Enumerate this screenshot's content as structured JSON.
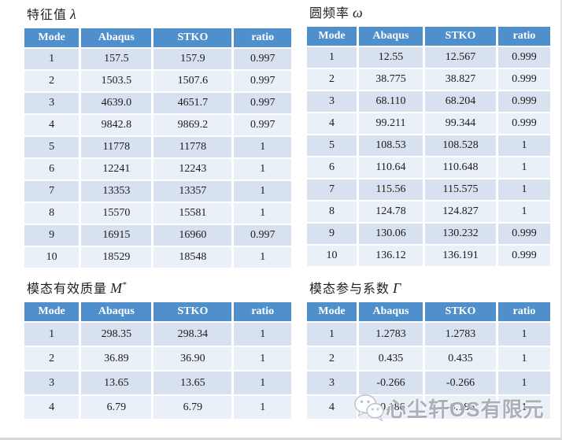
{
  "colors": {
    "header_bg": "#4e8fcc",
    "header_text": "#ffffff",
    "row_odd": "#d7e1ef",
    "row_even": "#eaf0f8"
  },
  "tables": [
    {
      "title": "特征值",
      "symbol": "λ",
      "symbol_sup": "",
      "headers": [
        "Mode",
        "Abaqus",
        "STKO",
        "ratio"
      ],
      "rows": [
        [
          "1",
          "157.5",
          "157.9",
          "0.997"
        ],
        [
          "2",
          "1503.5",
          "1507.6",
          "0.997"
        ],
        [
          "3",
          "4639.0",
          "4651.7",
          "0.997"
        ],
        [
          "4",
          "9842.8",
          "9869.2",
          "0.997"
        ],
        [
          "5",
          "11778",
          "11778",
          "1"
        ],
        [
          "6",
          "12241",
          "12243",
          "1"
        ],
        [
          "7",
          "13353",
          "13357",
          "1"
        ],
        [
          "8",
          "15570",
          "15581",
          "1"
        ],
        [
          "9",
          "16915",
          "16960",
          "0.997"
        ],
        [
          "10",
          "18529",
          "18548",
          "1"
        ]
      ]
    },
    {
      "title": "圆频率",
      "symbol": "ω",
      "symbol_sup": "",
      "headers": [
        "Mode",
        "Abaqus",
        "STKO",
        "ratio"
      ],
      "rows": [
        [
          "1",
          "12.55",
          "12.567",
          "0.999"
        ],
        [
          "2",
          "38.775",
          "38.827",
          "0.999"
        ],
        [
          "3",
          "68.110",
          "68.204",
          "0.999"
        ],
        [
          "4",
          "99.211",
          "99.344",
          "0.999"
        ],
        [
          "5",
          "108.53",
          "108.528",
          "1"
        ],
        [
          "6",
          "110.64",
          "110.648",
          "1"
        ],
        [
          "7",
          "115.56",
          "115.575",
          "1"
        ],
        [
          "8",
          "124.78",
          "124.827",
          "1"
        ],
        [
          "9",
          "130.06",
          "130.232",
          "0.999"
        ],
        [
          "10",
          "136.12",
          "136.191",
          "0.999"
        ]
      ]
    },
    {
      "title": "模态有效质量",
      "symbol": "M",
      "symbol_sup": "*",
      "headers": [
        "Mode",
        "Abaqus",
        "STKO",
        "ratio"
      ],
      "rows": [
        [
          "1",
          "298.35",
          "298.34",
          "1"
        ],
        [
          "2",
          "36.89",
          "36.90",
          "1"
        ],
        [
          "3",
          "13.65",
          "13.65",
          "1"
        ],
        [
          "4",
          "6.79",
          "6.79",
          "1"
        ]
      ]
    },
    {
      "title": "模态参与系数",
      "symbol": "Γ",
      "symbol_sup": "",
      "headers": [
        "Mode",
        "Abaqus",
        "STKO",
        "ratio"
      ],
      "rows": [
        [
          "1",
          "1.2783",
          "1.2783",
          "1"
        ],
        [
          "2",
          "0.435",
          "0.435",
          "1"
        ],
        [
          "3",
          "-0.266",
          "-0.266",
          "1"
        ],
        [
          "4",
          "-0.186",
          "-0.186",
          "1"
        ]
      ]
    }
  ],
  "watermark": {
    "icon": "wechat-icon",
    "text": "心尘轩OS有限元"
  }
}
